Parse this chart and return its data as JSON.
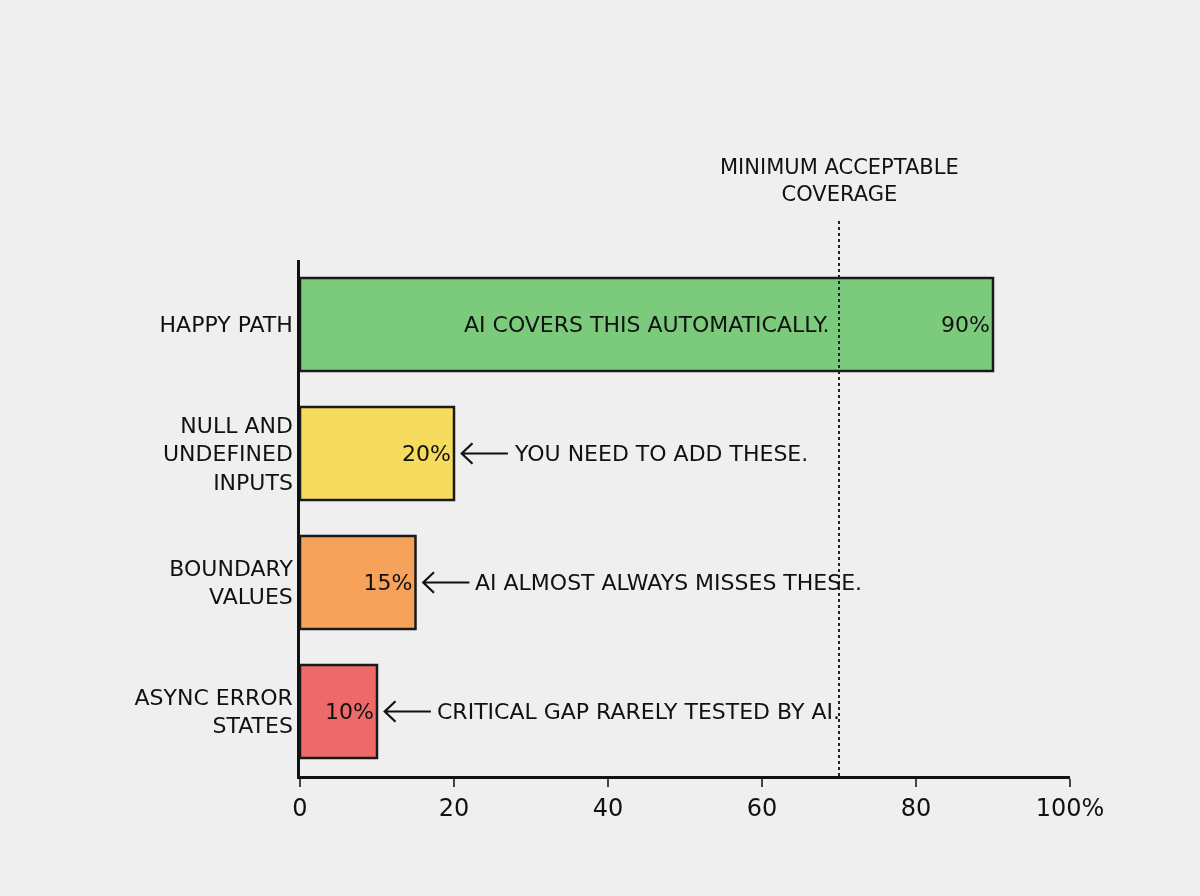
{
  "chart_data": {
    "type": "bar",
    "orientation": "horizontal",
    "categories": [
      "HAPPY PATH",
      "NULL AND UNDEFINED INPUTS",
      "BOUNDARY VALUES",
      "ASYNC ERROR STATES"
    ],
    "values": [
      90,
      20,
      15,
      10
    ],
    "colors": [
      "#7ccb7c",
      "#f6dc5e",
      "#f6a25a",
      "#ee6a6a"
    ],
    "value_labels": [
      "90%",
      "20%",
      "15%",
      "10%"
    ],
    "xlim": [
      0,
      100
    ],
    "xticks": [
      0,
      20,
      40,
      60,
      80,
      {
        "value": 100,
        "label": "100%"
      }
    ],
    "grid": false,
    "legend": false,
    "ref_lines": [
      {
        "axis": "x",
        "value": 70,
        "label": "MINIMUM ACCEPTABLE COVERAGE",
        "line_style": "dotted",
        "color": "#222222"
      }
    ],
    "annotations": [
      "AI COVERS THIS AUTOMATICALLY.",
      "YOU NEED TO ADD THESE.",
      "AI ALMOST ALWAYS MISSES THESE.",
      "CRITICAL GAP RARELY TESTED BY AI."
    ]
  }
}
